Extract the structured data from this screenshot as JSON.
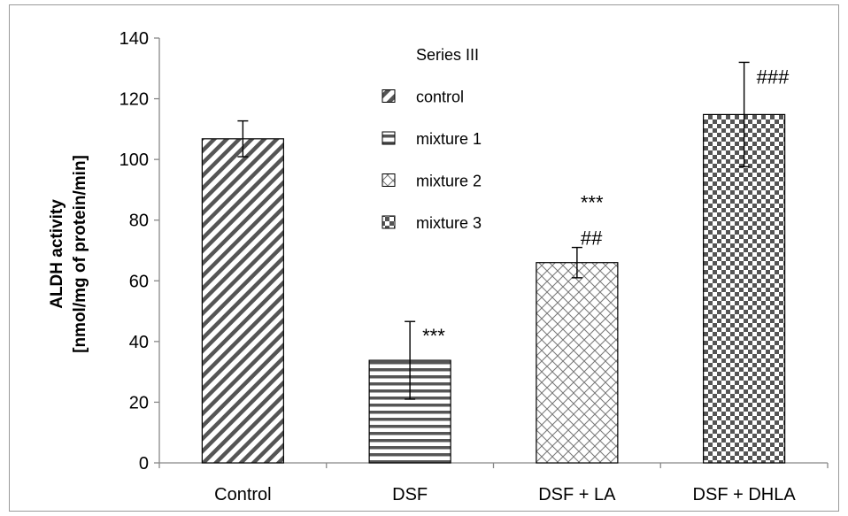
{
  "chart_data": {
    "type": "bar",
    "title": "",
    "xlabel": "",
    "ylabel": [
      "ALDH activity",
      "[nmol/mg of protein/min]"
    ],
    "categories": [
      "Control",
      "DSF",
      "DSF + LA",
      "DSF + DHLA"
    ],
    "series": [
      {
        "values": [
          106.8,
          33.8,
          66.0,
          114.8
        ],
        "errors": [
          5.9,
          12.8,
          5.0,
          17.2
        ]
      }
    ],
    "annotations": [
      {
        "category": "DSF",
        "lines": [
          "***"
        ]
      },
      {
        "category": "DSF + LA",
        "lines": [
          "***",
          "##"
        ]
      },
      {
        "category": "DSF + DHLA",
        "lines": [
          "###"
        ]
      }
    ],
    "ylim": [
      0,
      140
    ],
    "yticks": [
      0,
      20,
      40,
      60,
      80,
      100,
      120,
      140
    ],
    "grid": false,
    "legend": {
      "title": "Series III",
      "position": "top-center",
      "entries": [
        {
          "label": "control",
          "pattern": "diagonal"
        },
        {
          "label": "mixture 1",
          "pattern": "horizontal"
        },
        {
          "label": "mixture 2",
          "pattern": "crosshatch"
        },
        {
          "label": "mixture 3",
          "pattern": "checker"
        }
      ]
    },
    "bar_patterns": [
      "diagonal",
      "horizontal",
      "crosshatch",
      "checker"
    ],
    "colors": {
      "bar_fill": "#ffffff",
      "pattern": "#555555",
      "axis": "#888888",
      "text": "#000000"
    }
  }
}
